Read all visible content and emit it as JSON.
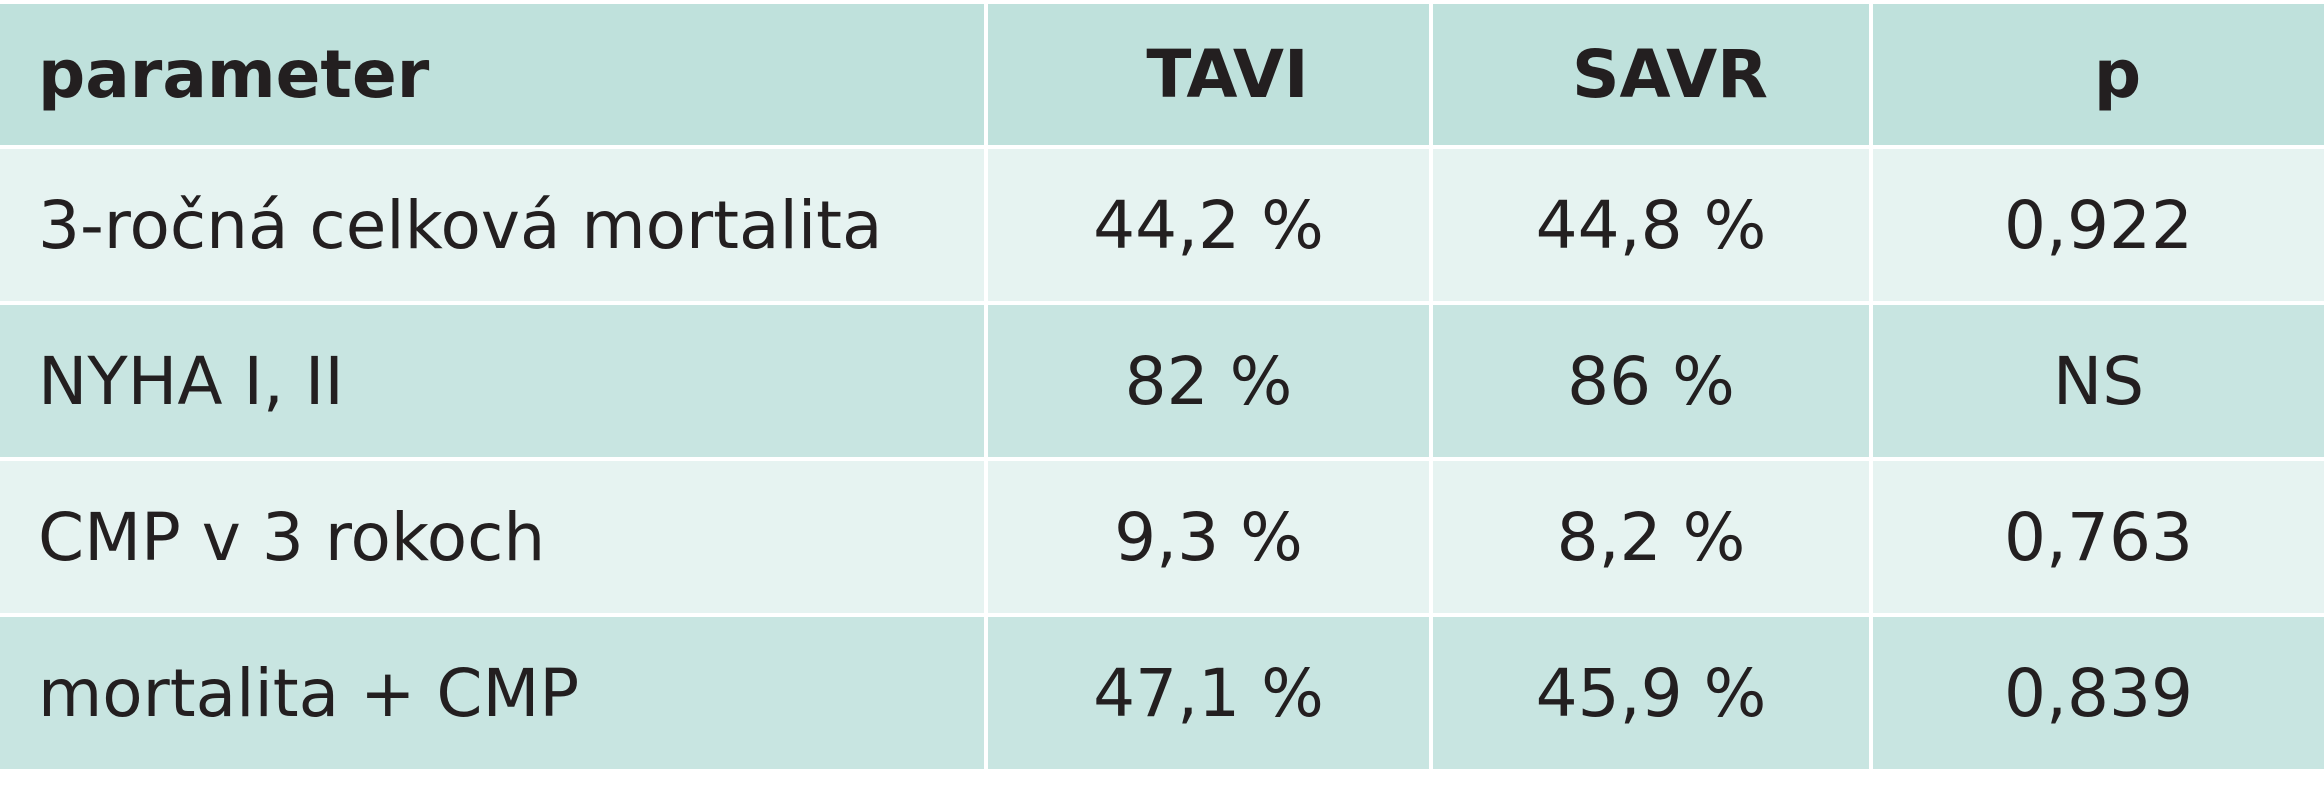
{
  "table": {
    "header": [
      "parameter",
      "TAVI",
      "SAVR",
      "p"
    ],
    "rows": [
      [
        "3-ročná celková mortalita",
        "44,2 %",
        "44,8 %",
        "0,922"
      ],
      [
        "NYHA I, II",
        "82 %",
        "86 %",
        "NS"
      ],
      [
        "CMP v 3 rokoch",
        "9,3 %",
        "8,2 %",
        "0,763"
      ],
      [
        "mortalita + CMP",
        "47,1 %",
        "45,9 %",
        "0,839"
      ]
    ]
  }
}
